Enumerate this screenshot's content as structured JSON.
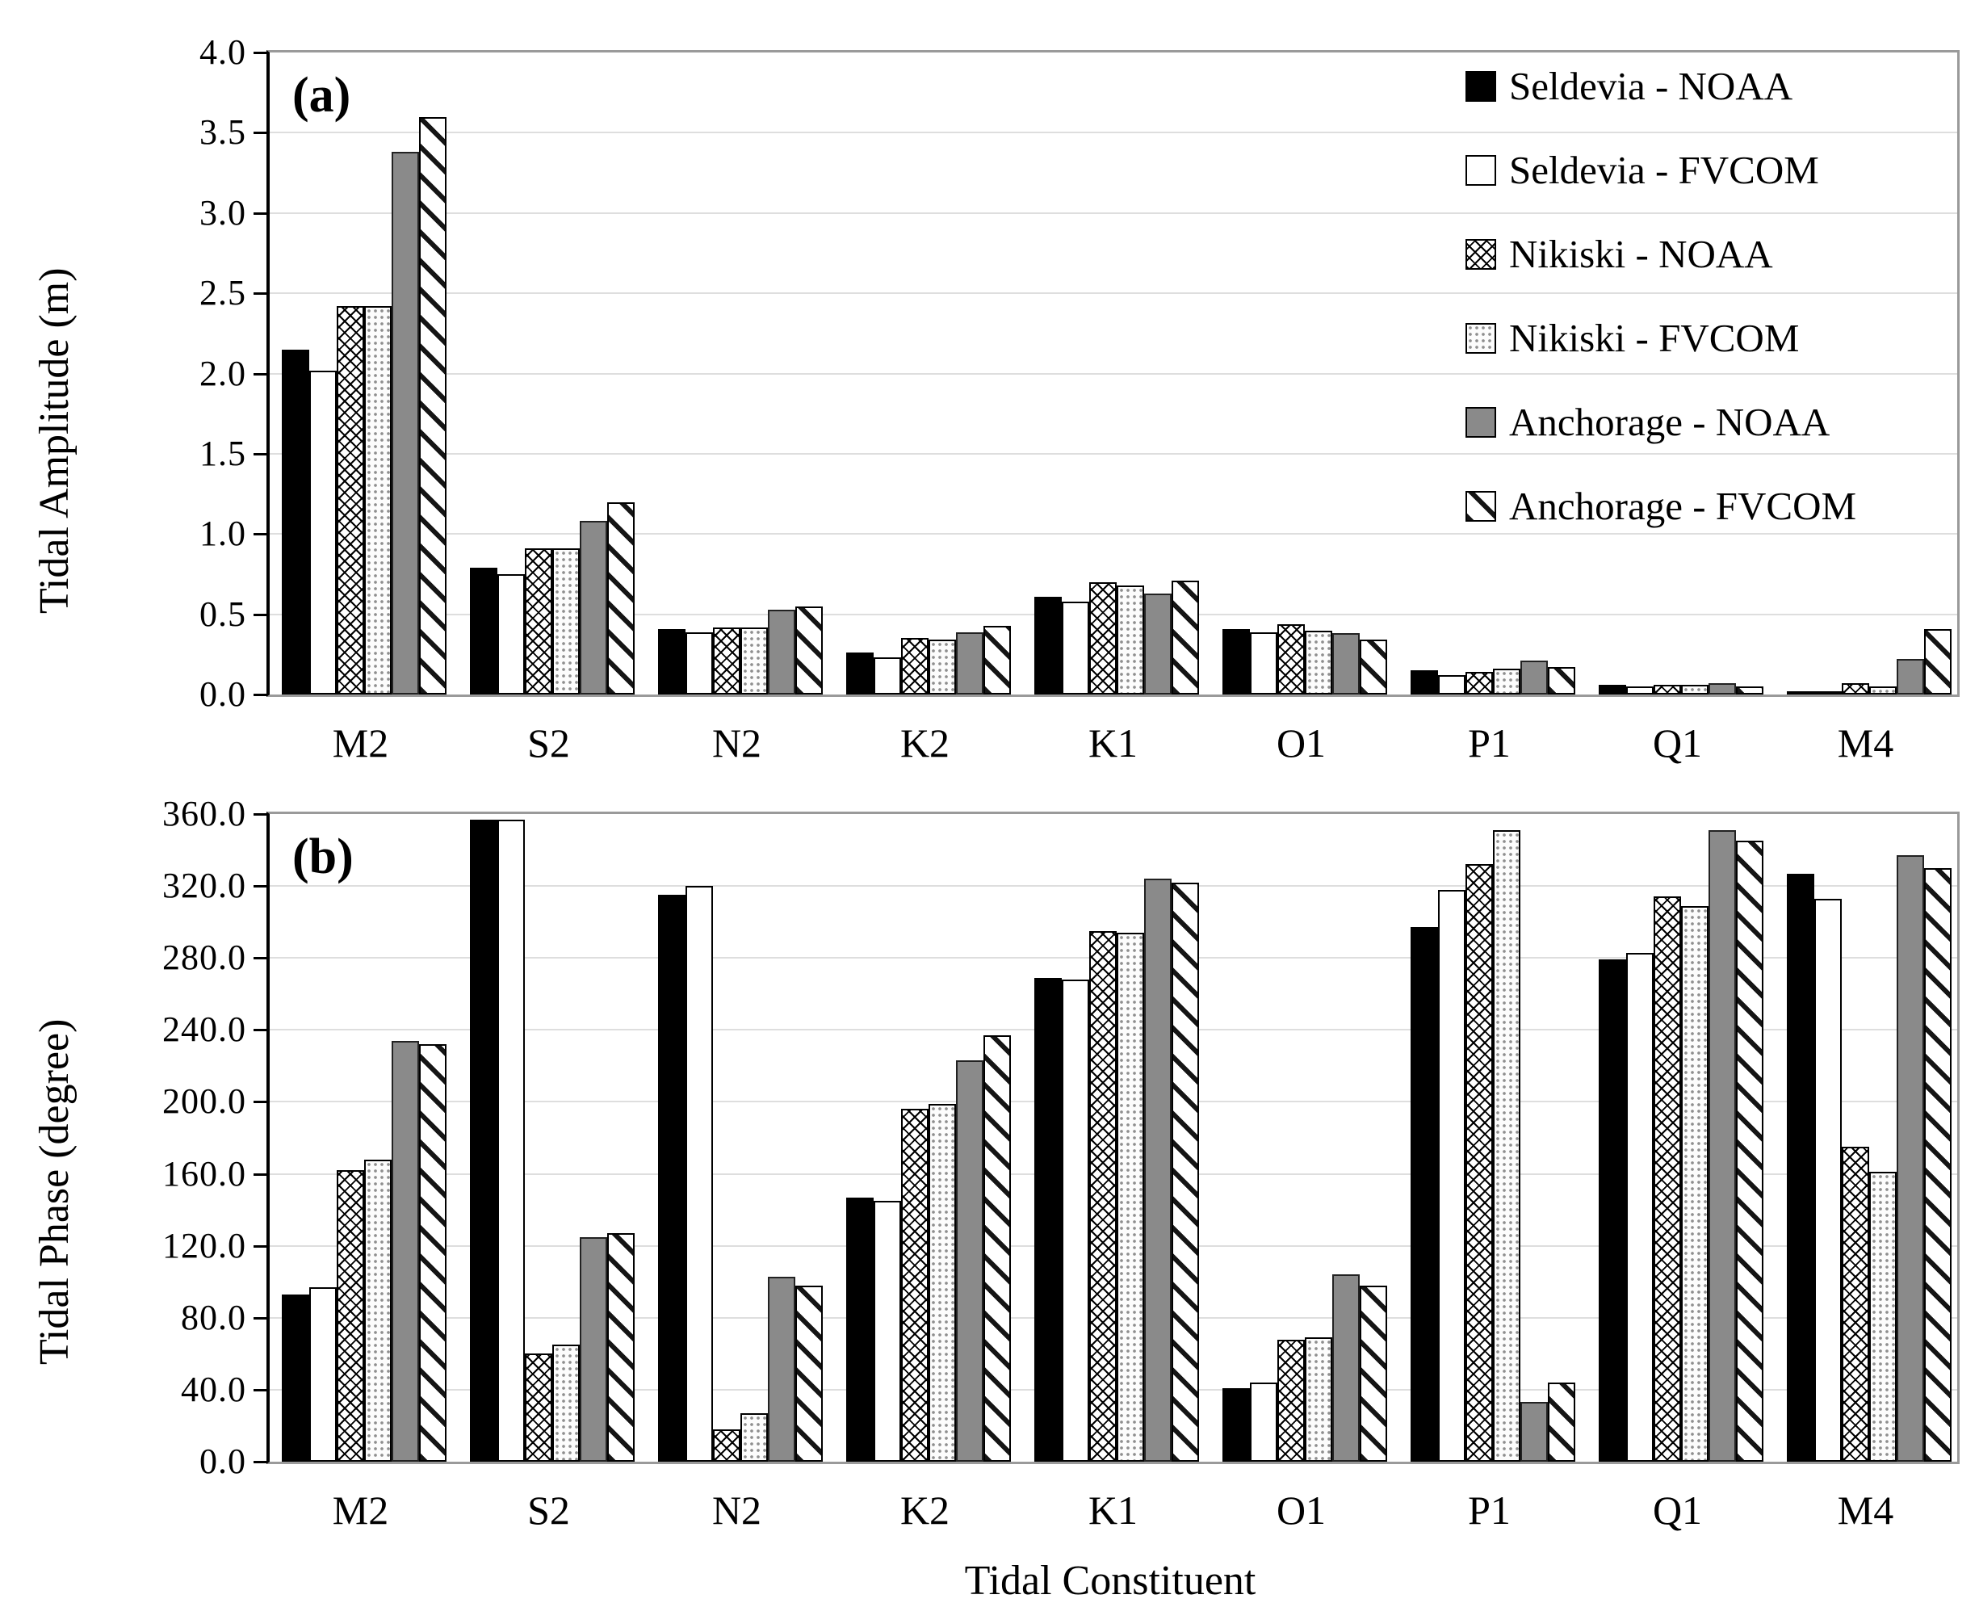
{
  "figure": {
    "panel_a_letter": "(a)",
    "panel_b_letter": "(b)",
    "x_axis_title": "Tidal Constituent"
  },
  "legend": {
    "position": "top-right-of-panel-a",
    "items": [
      {
        "label": "Seldevia - NOAA",
        "pattern": "solid-black"
      },
      {
        "label": "Seldevia - FVCOM",
        "pattern": "white-outline"
      },
      {
        "label": "Nikiski - NOAA",
        "pattern": "crosshatch"
      },
      {
        "label": "Nikiski - FVCOM",
        "pattern": "light-dots"
      },
      {
        "label": "Anchorage - NOAA",
        "pattern": "solid-gray"
      },
      {
        "label": "Anchorage - FVCOM",
        "pattern": "diagonal-hatch"
      }
    ]
  },
  "chart_data": [
    {
      "type": "bar",
      "panel": "a",
      "panel_label": "(a)",
      "ylabel": "Tidal Amplitude (m)",
      "ylim": [
        0,
        4.0
      ],
      "ytick_step": 0.5,
      "ytick_decimals": 1,
      "grid": true,
      "categories": [
        "M2",
        "S2",
        "N2",
        "K2",
        "K1",
        "O1",
        "P1",
        "Q1",
        "M4"
      ],
      "series": [
        {
          "name": "Seldevia - NOAA",
          "values": [
            2.15,
            0.79,
            0.41,
            0.26,
            0.61,
            0.41,
            0.15,
            0.06,
            0.02
          ]
        },
        {
          "name": "Seldevia - FVCOM",
          "values": [
            2.02,
            0.75,
            0.39,
            0.23,
            0.58,
            0.39,
            0.12,
            0.05,
            0.01
          ]
        },
        {
          "name": "Nikiski - NOAA",
          "values": [
            2.42,
            0.91,
            0.42,
            0.35,
            0.7,
            0.44,
            0.14,
            0.06,
            0.07
          ]
        },
        {
          "name": "Nikiski - FVCOM",
          "values": [
            2.42,
            0.91,
            0.42,
            0.34,
            0.68,
            0.4,
            0.16,
            0.06,
            0.05
          ]
        },
        {
          "name": "Anchorage - NOAA",
          "values": [
            3.38,
            1.08,
            0.53,
            0.39,
            0.63,
            0.38,
            0.21,
            0.07,
            0.22
          ]
        },
        {
          "name": "Anchorage - FVCOM",
          "values": [
            3.6,
            1.2,
            0.55,
            0.43,
            0.71,
            0.34,
            0.17,
            0.05,
            0.41
          ]
        }
      ]
    },
    {
      "type": "bar",
      "panel": "b",
      "panel_label": "(b)",
      "ylabel": "Tidal Phase (degree)",
      "xlabel": "Tidal Constituent",
      "ylim": [
        0,
        360.0
      ],
      "ytick_step": 40,
      "ytick_decimals": 1,
      "grid": true,
      "categories": [
        "M2",
        "S2",
        "N2",
        "K2",
        "K1",
        "O1",
        "P1",
        "Q1",
        "M4"
      ],
      "series": [
        {
          "name": "Seldevia - NOAA",
          "values": [
            93,
            357,
            315,
            147,
            269,
            41,
            297,
            279,
            327
          ]
        },
        {
          "name": "Seldevia - FVCOM",
          "values": [
            97,
            357,
            320,
            145,
            268,
            44,
            318,
            283,
            313
          ]
        },
        {
          "name": "Nikiski - NOAA",
          "values": [
            162,
            60,
            18,
            196,
            295,
            68,
            332,
            314,
            175
          ]
        },
        {
          "name": "Nikiski - FVCOM",
          "values": [
            168,
            65,
            27,
            199,
            294,
            69,
            351,
            309,
            161
          ]
        },
        {
          "name": "Anchorage - NOAA",
          "values": [
            234,
            125,
            103,
            223,
            324,
            104,
            33,
            351,
            337
          ]
        },
        {
          "name": "Anchorage - FVCOM",
          "values": [
            232,
            127,
            98,
            237,
            322,
            98,
            44,
            345,
            330
          ]
        }
      ]
    }
  ]
}
